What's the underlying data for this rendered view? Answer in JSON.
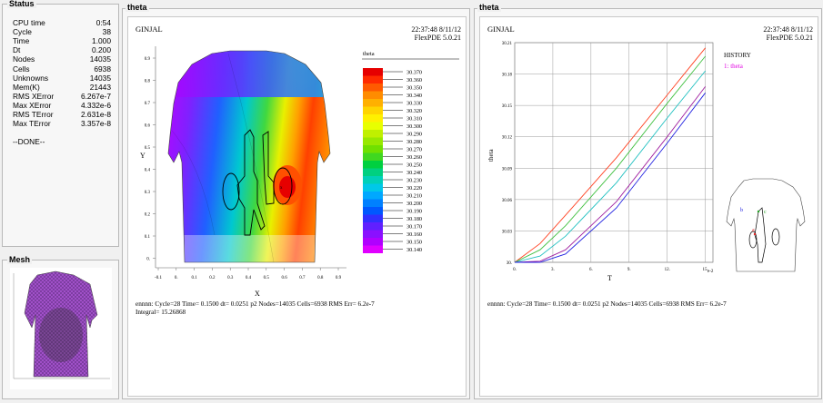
{
  "status": {
    "label": "Status",
    "rows": [
      {
        "key": "CPU time",
        "value": "0:54"
      },
      {
        "key": "Cycle",
        "value": "38"
      },
      {
        "key": "Time",
        "value": "1.000"
      },
      {
        "key": "Dt",
        "value": "0.200"
      },
      {
        "key": "Nodes",
        "value": "14035"
      },
      {
        "key": "Cells",
        "value": "6938"
      },
      {
        "key": "Unknowns",
        "value": "14035"
      },
      {
        "key": "Mem(K)",
        "value": "21443"
      },
      {
        "key": "RMS XError",
        "value": "6.267e-7"
      },
      {
        "key": "Max XError",
        "value": "4.332e-6"
      },
      {
        "key": "RMS TError",
        "value": "2.631e-8"
      },
      {
        "key": "Max TError",
        "value": "3.357e-8"
      },
      {
        "key": "",
        "value": ""
      }
    ],
    "done": "--DONE--"
  },
  "mesh": {
    "label": "Mesh"
  },
  "contour_panel": {
    "label": "theta",
    "problem": "GINJAL",
    "timestamp": "22:37:48 8/11/12",
    "version": "FlexPDE 5.0.21",
    "legend_title": "theta",
    "legend_values": [
      "30.370",
      "30.360",
      "30.350",
      "30.340",
      "30.330",
      "30.320",
      "30.310",
      "30.300",
      "30.290",
      "30.280",
      "30.270",
      "30.260",
      "30.250",
      "30.240",
      "30.230",
      "30.220",
      "30.210",
      "30.200",
      "30.190",
      "30.180",
      "30.170",
      "30.160",
      "30.150",
      "30.140"
    ],
    "legend_colors": [
      "#e60000",
      "#ff2a00",
      "#ff5a00",
      "#ff8c00",
      "#ffb000",
      "#ffd400",
      "#fff000",
      "#e8ff00",
      "#c0f000",
      "#98e800",
      "#70e000",
      "#40d820",
      "#00d040",
      "#00d080",
      "#00d0b8",
      "#00c8e8",
      "#00a8ff",
      "#0080ff",
      "#0058ff",
      "#3030ff",
      "#6020ff",
      "#8a10ff",
      "#b000ff",
      "#e000ff"
    ],
    "xlabel": "X",
    "ylabel": "Y",
    "xticks": [
      "-0.1",
      "0.",
      "0.1",
      "0.2",
      "0.3",
      "0.4",
      "0.5",
      "0.6",
      "0.7",
      "0.8",
      "0.9"
    ],
    "yticks": [
      "0.9",
      "0.8",
      "0.7",
      "0.6",
      "0.5",
      "0.4",
      "0.3",
      "0.2",
      "0.1",
      "0."
    ],
    "footer1": "ennnn:  Cycle=28  Time= 0.1500  dt= 0.0251  p2  Nodes=14035 Cells=6938 RMS Err= 6.2e-7",
    "footer2": "Integral= 15.26868"
  },
  "history_panel": {
    "label": "theta",
    "problem": "GINJAL",
    "timestamp": "22:37:48 8/11/12",
    "version": "FlexPDE 5.0.21",
    "history_title": "HISTORY",
    "history_entry": "1: theta",
    "xlabel": "T",
    "ylabel": "theta",
    "x_exponent": "e-2",
    "footer1": "ennnn:  Cycle=28  Time= 0.1500  dt= 0.0251  p2  Nodes=14035 Cells=6938 RMS Err= 6.2e-7",
    "inset_labels": [
      "a",
      "b",
      "c"
    ],
    "chart_data": {
      "type": "line",
      "xlabel": "T",
      "ylabel": "theta",
      "x_ticks": [
        "0.",
        "3.",
        "6.",
        "9.",
        "12.",
        "15."
      ],
      "y_ticks": [
        "30.21",
        "30.18",
        "30.15",
        "30.12",
        "30.09",
        "30.06",
        "30.03",
        "30."
      ],
      "xlim": [
        0,
        15.6
      ],
      "ylim": [
        30.0,
        30.21
      ],
      "series": [
        {
          "color": "#ff4020",
          "points": [
            [
              0,
              30.0
            ],
            [
              2,
              30.018
            ],
            [
              4,
              30.045
            ],
            [
              8,
              30.1
            ],
            [
              12,
              30.16
            ],
            [
              15,
              30.205
            ]
          ]
        },
        {
          "color": "#40c040",
          "points": [
            [
              0,
              30.0
            ],
            [
              2,
              30.012
            ],
            [
              4,
              30.035
            ],
            [
              8,
              30.09
            ],
            [
              12,
              30.152
            ],
            [
              15,
              30.197
            ]
          ]
        },
        {
          "color": "#20c0c0",
          "points": [
            [
              0,
              30.0
            ],
            [
              2,
              30.006
            ],
            [
              4,
              30.025
            ],
            [
              8,
              30.076
            ],
            [
              12,
              30.138
            ],
            [
              15,
              30.183
            ]
          ]
        },
        {
          "color": "#a020a0",
          "points": [
            [
              0,
              30.0
            ],
            [
              2,
              30.001
            ],
            [
              4,
              30.012
            ],
            [
              8,
              30.058
            ],
            [
              12,
              30.12
            ],
            [
              15,
              30.168
            ]
          ]
        },
        {
          "color": "#2020e0",
          "points": [
            [
              0,
              30.0
            ],
            [
              2,
              30.0
            ],
            [
              4,
              30.008
            ],
            [
              8,
              30.052
            ],
            [
              12,
              30.114
            ],
            [
              15,
              30.162
            ]
          ]
        }
      ]
    }
  }
}
